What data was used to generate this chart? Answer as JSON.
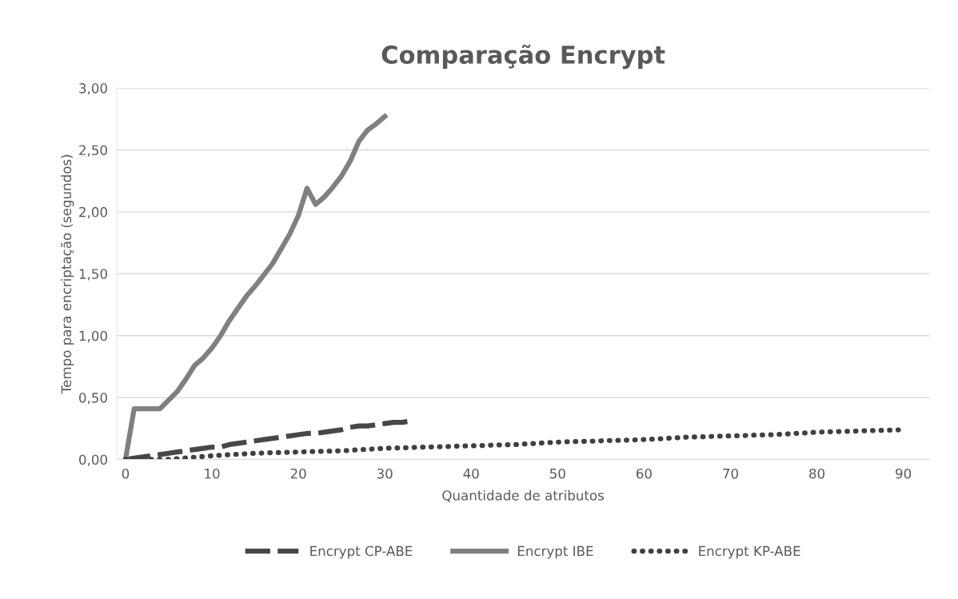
{
  "chart_data": {
    "type": "line",
    "title": "Comparação Encrypt",
    "xlabel": "Quantidade de atributos",
    "ylabel": "Tempo para encriptação (segundos)",
    "xlim": [
      -1,
      93
    ],
    "xticks": [
      0,
      10,
      20,
      30,
      40,
      50,
      60,
      70,
      80,
      90
    ],
    "ylim": [
      0,
      3
    ],
    "yticks": [
      {
        "value": 0,
        "label": "0,00"
      },
      {
        "value": 0.5,
        "label": "0,50"
      },
      {
        "value": 1,
        "label": "1,00"
      },
      {
        "value": 1.5,
        "label": "1,50"
      },
      {
        "value": 2,
        "label": "2,00"
      },
      {
        "value": 2.5,
        "label": "2,50"
      },
      {
        "value": 3,
        "label": "3,00"
      }
    ],
    "grid": "y",
    "legend": "bottom",
    "marker": "none",
    "series": [
      {
        "name": "Encrypt CP-ABE",
        "color": "#474747",
        "line_style": "dashed",
        "x": [
          0,
          1,
          2,
          3,
          4,
          5,
          6,
          7,
          8,
          9,
          10,
          11,
          12,
          13,
          14,
          15,
          16,
          17,
          18,
          19,
          20,
          21,
          22,
          23,
          24,
          25,
          26,
          27,
          28,
          29,
          30,
          31,
          32,
          33
        ],
        "values": [
          0,
          0.01,
          0.02,
          0.03,
          0.04,
          0.05,
          0.06,
          0.07,
          0.08,
          0.09,
          0.1,
          0.1,
          0.12,
          0.13,
          0.14,
          0.15,
          0.16,
          0.17,
          0.18,
          0.19,
          0.2,
          0.21,
          0.21,
          0.22,
          0.23,
          0.24,
          0.26,
          0.27,
          0.27,
          0.28,
          0.29,
          0.3,
          0.3,
          0.31
        ]
      },
      {
        "name": "Encrypt IBE",
        "color": "#808080",
        "line_style": "solid",
        "x": [
          0,
          1,
          2,
          3,
          4,
          5,
          6,
          7,
          8,
          9,
          10,
          11,
          12,
          13,
          14,
          15,
          16,
          17,
          18,
          19,
          20,
          21,
          22,
          23,
          24,
          25,
          26,
          27,
          28,
          29,
          30
        ],
        "values": [
          0,
          0.41,
          0.41,
          0.41,
          0.41,
          0.48,
          0.55,
          0.65,
          0.76,
          0.82,
          0.9,
          1.0,
          1.12,
          1.22,
          1.32,
          1.4,
          1.49,
          1.58,
          1.7,
          1.82,
          1.97,
          2.19,
          2.06,
          2.12,
          2.2,
          2.29,
          2.41,
          2.57,
          2.66,
          2.71,
          2.77
        ]
      },
      {
        "name": "Encrypt KP-ABE",
        "color": "#404040",
        "line_style": "dotted",
        "x": [
          0,
          5,
          10,
          15,
          20,
          25,
          30,
          35,
          40,
          45,
          50,
          55,
          60,
          65,
          70,
          75,
          80,
          85,
          90
        ],
        "values": [
          0,
          0,
          0.03,
          0.05,
          0.06,
          0.07,
          0.09,
          0.1,
          0.11,
          0.12,
          0.14,
          0.15,
          0.16,
          0.18,
          0.19,
          0.2,
          0.22,
          0.23,
          0.24
        ]
      }
    ]
  }
}
